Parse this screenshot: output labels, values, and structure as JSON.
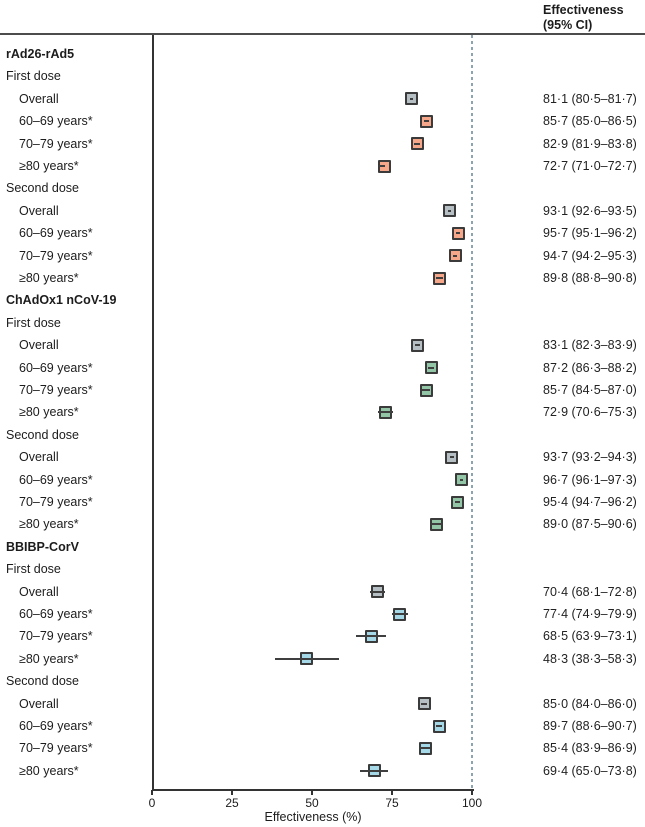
{
  "header": {
    "effect_col_line1": "Effectiveness",
    "effect_col_line2": "(95% CI)"
  },
  "colors": {
    "overall_fill": "#b6bfc4",
    "rad26_fill": "#f6a78a",
    "chadox_fill": "#93c6a7",
    "bbibp_fill": "#a6d9e8",
    "marker_border": "#3b3b3b",
    "ci_line": "#3f3f3f",
    "reference_dash": "#8ca3b0"
  },
  "chart_data": {
    "type": "forest",
    "title": "",
    "xlabel": "Effectiveness (%)",
    "xlim": [
      0,
      100
    ],
    "ticks": [
      0,
      25,
      50,
      75,
      100
    ],
    "reference_value": 100,
    "right_column_header": "Effectiveness (95% CI)",
    "groups": [
      {
        "name": "rAd26-rAd5",
        "color_key": "rad26_fill",
        "doses": [
          {
            "name": "First dose",
            "rows": [
              {
                "label": "Overall",
                "est": 81.1,
                "lo": 80.5,
                "hi": 81.7,
                "ci_text": "81·1 (80·5–81·7)",
                "overall": true
              },
              {
                "label": "60–69 years*",
                "est": 85.7,
                "lo": 85.0,
                "hi": 86.5,
                "ci_text": "85·7 (85·0–86·5)",
                "overall": false
              },
              {
                "label": "70–79 years*",
                "est": 82.9,
                "lo": 81.9,
                "hi": 83.8,
                "ci_text": "82·9 (81·9–83·8)",
                "overall": false
              },
              {
                "label": "≥80 years*",
                "est": 72.7,
                "lo": 71.0,
                "hi": 72.7,
                "ci_text": "72·7 (71·0–72·7)",
                "overall": false
              }
            ]
          },
          {
            "name": "Second dose",
            "rows": [
              {
                "label": "Overall",
                "est": 93.1,
                "lo": 92.6,
                "hi": 93.5,
                "ci_text": "93·1 (92·6–93·5)",
                "overall": true
              },
              {
                "label": "60–69 years*",
                "est": 95.7,
                "lo": 95.1,
                "hi": 96.2,
                "ci_text": "95·7 (95·1–96·2)",
                "overall": false
              },
              {
                "label": "70–79 years*",
                "est": 94.7,
                "lo": 94.2,
                "hi": 95.3,
                "ci_text": "94·7 (94·2–95·3)",
                "overall": false
              },
              {
                "label": "≥80 years*",
                "est": 89.8,
                "lo": 88.8,
                "hi": 90.8,
                "ci_text": "89·8 (88·8–90·8)",
                "overall": false
              }
            ]
          }
        ]
      },
      {
        "name": "ChAdOx1 nCoV-19",
        "color_key": "chadox_fill",
        "doses": [
          {
            "name": "First dose",
            "rows": [
              {
                "label": "Overall",
                "est": 83.1,
                "lo": 82.3,
                "hi": 83.9,
                "ci_text": "83·1 (82·3–83·9)",
                "overall": true
              },
              {
                "label": "60–69 years*",
                "est": 87.2,
                "lo": 86.3,
                "hi": 88.2,
                "ci_text": "87·2 (86·3–88·2)",
                "overall": false
              },
              {
                "label": "70–79 years*",
                "est": 85.7,
                "lo": 84.5,
                "hi": 87.0,
                "ci_text": "85·7 (84·5–87·0)",
                "overall": false
              },
              {
                "label": "≥80 years*",
                "est": 72.9,
                "lo": 70.6,
                "hi": 75.3,
                "ci_text": "72·9 (70·6–75·3)",
                "overall": false
              }
            ]
          },
          {
            "name": "Second dose",
            "rows": [
              {
                "label": "Overall",
                "est": 93.7,
                "lo": 93.2,
                "hi": 94.3,
                "ci_text": "93·7 (93·2–94·3)",
                "overall": true
              },
              {
                "label": "60–69 years*",
                "est": 96.7,
                "lo": 96.1,
                "hi": 97.3,
                "ci_text": "96·7 (96·1–97·3)",
                "overall": false
              },
              {
                "label": "70–79 years*",
                "est": 95.4,
                "lo": 94.7,
                "hi": 96.2,
                "ci_text": "95·4 (94·7–96·2)",
                "overall": false
              },
              {
                "label": "≥80 years*",
                "est": 89.0,
                "lo": 87.5,
                "hi": 90.6,
                "ci_text": "89·0 (87·5–90·6)",
                "overall": false
              }
            ]
          }
        ]
      },
      {
        "name": "BBIBP-CorV",
        "color_key": "bbibp_fill",
        "doses": [
          {
            "name": "First dose",
            "rows": [
              {
                "label": "Overall",
                "est": 70.4,
                "lo": 68.1,
                "hi": 72.8,
                "ci_text": "70·4 (68·1–72·8)",
                "overall": true
              },
              {
                "label": "60–69 years*",
                "est": 77.4,
                "lo": 74.9,
                "hi": 79.9,
                "ci_text": "77·4 (74·9–79·9)",
                "overall": false
              },
              {
                "label": "70–79 years*",
                "est": 68.5,
                "lo": 63.9,
                "hi": 73.1,
                "ci_text": "68·5 (63·9–73·1)",
                "overall": false
              },
              {
                "label": "≥80 years*",
                "est": 48.3,
                "lo": 38.3,
                "hi": 58.3,
                "ci_text": "48·3 (38·3–58·3)",
                "overall": false
              }
            ]
          },
          {
            "name": "Second dose",
            "rows": [
              {
                "label": "Overall",
                "est": 85.0,
                "lo": 84.0,
                "hi": 86.0,
                "ci_text": "85·0 (84·0–86·0)",
                "overall": true
              },
              {
                "label": "60–69 years*",
                "est": 89.7,
                "lo": 88.6,
                "hi": 90.7,
                "ci_text": "89·7 (88·6–90·7)",
                "overall": false
              },
              {
                "label": "70–79 years*",
                "est": 85.4,
                "lo": 83.9,
                "hi": 86.9,
                "ci_text": "85·4 (83·9–86·9)",
                "overall": false
              },
              {
                "label": "≥80 years*",
                "est": 69.4,
                "lo": 65.0,
                "hi": 73.8,
                "ci_text": "69·4 (65·0–73·8)",
                "overall": false
              }
            ]
          }
        ]
      }
    ]
  }
}
